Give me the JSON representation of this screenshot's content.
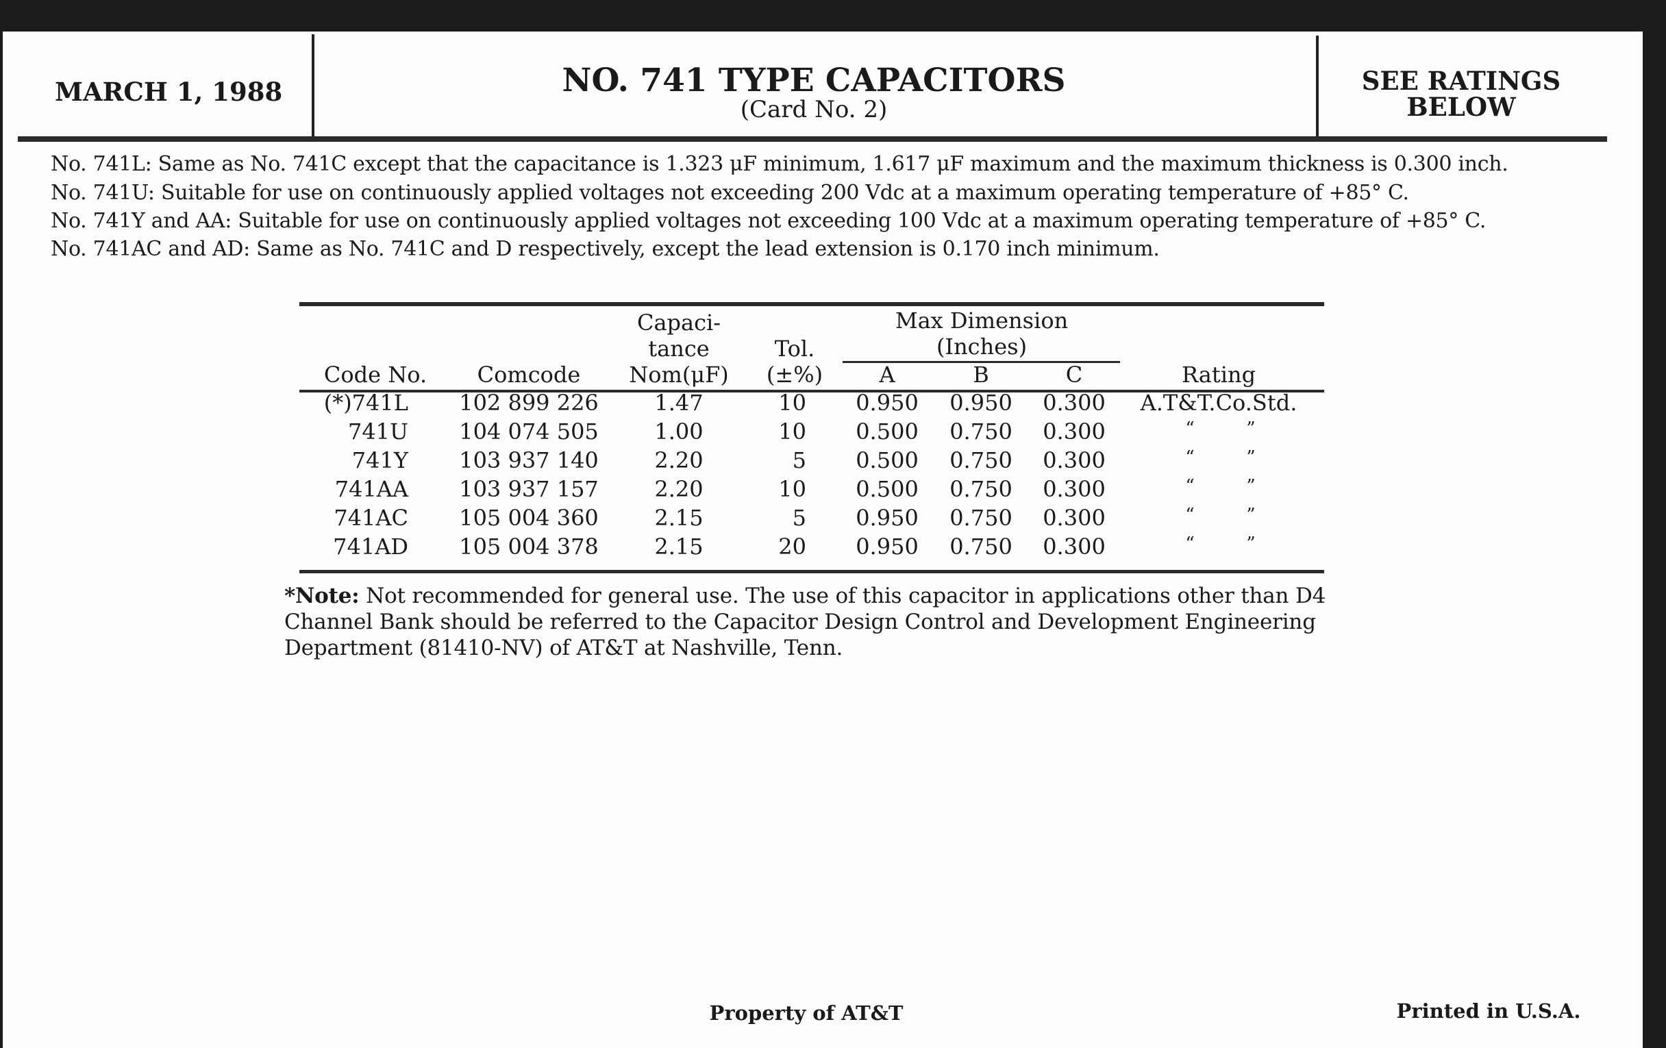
{
  "header": {
    "date": "MARCH 1, 1988",
    "title": "NO. 741 TYPE CAPACITORS",
    "subtitle": "(Card No. 2)",
    "ratings_line1": "SEE RATINGS",
    "ratings_line2": "BELOW"
  },
  "notes": [
    "No. 741L: Same as No. 741C except that the capacitance is 1.323 μF minimum, 1.617 μF maximum and the maximum thickness is 0.300 inch.",
    "No. 741U: Suitable for use on continuously applied voltages not exceeding 200 Vdc at a maximum operating temperature of +85° C.",
    "No. 741Y and AA: Suitable for use on continuously applied voltages not exceeding 100 Vdc at a maximum operating temperature of +85° C.",
    "No. 741AC and AD: Same as No. 741C and D respectively, except the lead extension is 0.170 inch minimum."
  ],
  "table": {
    "headers": {
      "code": "Code No.",
      "comcode": "Comcode",
      "cap1": "Capaci-",
      "cap2": "tance",
      "cap3": "Nom(μF)",
      "tol1": "Tol.",
      "tol2": "(±%)",
      "maxdim1": "Max Dimension",
      "maxdim2": "(Inches)",
      "a": "A",
      "b": "B",
      "c": "C",
      "rating": "Rating"
    },
    "rows": [
      {
        "code": "(*)741L",
        "comcode": "102 899 226",
        "cap": "1.47",
        "tol": "10",
        "a": "0.950",
        "b": "0.950",
        "c": "0.300",
        "rating": "A.T&T.Co.Std."
      },
      {
        "code": "741U",
        "comcode": "104 074 505",
        "cap": "1.00",
        "tol": "10",
        "a": "0.500",
        "b": "0.750",
        "c": "0.300",
        "rating_open": "“",
        "rating_close": "”"
      },
      {
        "code": "741Y",
        "comcode": "103 937 140",
        "cap": "2.20",
        "tol": "5",
        "a": "0.500",
        "b": "0.750",
        "c": "0.300",
        "rating_open": "“",
        "rating_close": "”"
      },
      {
        "code": "741AA",
        "comcode": "103 937 157",
        "cap": "2.20",
        "tol": "10",
        "a": "0.500",
        "b": "0.750",
        "c": "0.300",
        "rating_open": "“",
        "rating_close": "”"
      },
      {
        "code": "741AC",
        "comcode": "105 004 360",
        "cap": "2.15",
        "tol": "5",
        "a": "0.950",
        "b": "0.750",
        "c": "0.300",
        "rating_open": "“",
        "rating_close": "”"
      },
      {
        "code": "741AD",
        "comcode": "105 004 378",
        "cap": "2.15",
        "tol": "20",
        "a": "0.950",
        "b": "0.750",
        "c": "0.300",
        "rating_open": "“",
        "rating_close": "”"
      }
    ]
  },
  "footnote": {
    "label": "*Note:",
    "line1": " Not recommended for general use. The use of this capacitor in applications other than D4",
    "line2": "Channel Bank should be referred to the Capacitor Design Control and Development Engineering",
    "line3": "Department (81410-NV) of AT&T at Nashville, Tenn."
  },
  "footer": {
    "property": "Property of AT&T",
    "printed": "Printed in U.S.A."
  }
}
